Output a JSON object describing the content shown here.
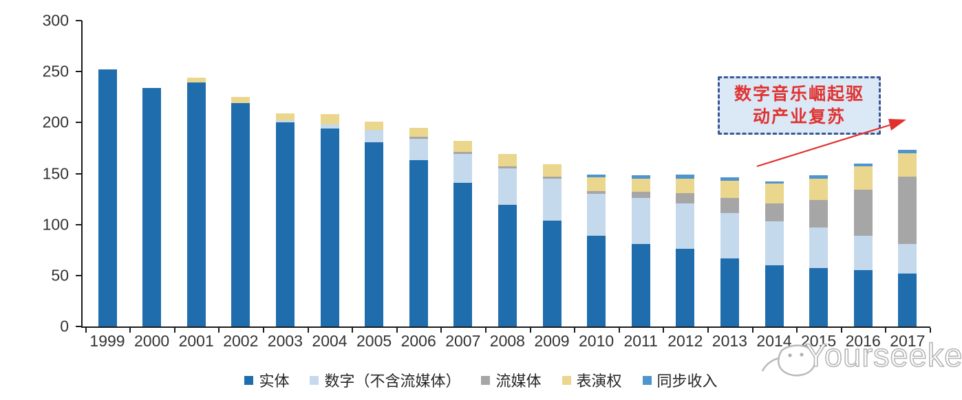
{
  "chart_data": {
    "type": "bar",
    "stacked": true,
    "grid": false,
    "legend_position": "bottom",
    "ylim": [
      0,
      300
    ],
    "y_ticks": [
      0,
      50,
      100,
      150,
      200,
      250,
      300
    ],
    "categories": [
      "1999",
      "2000",
      "2001",
      "2002",
      "2003",
      "2004",
      "2005",
      "2006",
      "2007",
      "2008",
      "2009",
      "2010",
      "2011",
      "2012",
      "2013",
      "2014",
      "2015",
      "2016",
      "2017"
    ],
    "series": [
      {
        "name": "实体",
        "color": "#1f6dad",
        "values": [
          252,
          234,
          239,
          219,
          200,
          194,
          181,
          163,
          141,
          119,
          104,
          89,
          81,
          76,
          67,
          60,
          57,
          55,
          52
        ]
      },
      {
        "name": "数字（不含流媒体）",
        "color": "#c5d9ed",
        "values": [
          0,
          0,
          0,
          0,
          2,
          4,
          12,
          21,
          28,
          36,
          41,
          41,
          45,
          45,
          44,
          43,
          40,
          34,
          29
        ]
      },
      {
        "name": "流媒体",
        "color": "#a6a6a6",
        "values": [
          0,
          0,
          0,
          0,
          0,
          0,
          0,
          2,
          2,
          2,
          2,
          3,
          6,
          10,
          15,
          18,
          27,
          45,
          66
        ]
      },
      {
        "name": "表演权",
        "color": "#ead68c",
        "values": [
          0,
          0,
          5,
          6,
          7,
          10,
          8,
          9,
          11,
          12,
          12,
          13,
          13,
          14,
          17,
          19,
          21,
          23,
          23
        ]
      },
      {
        "name": "同步收入",
        "color": "#4e94ce",
        "values": [
          0,
          0,
          0,
          0,
          0,
          0,
          0,
          0,
          0,
          0,
          0,
          3,
          3,
          4,
          3,
          2,
          3,
          3,
          3
        ]
      }
    ]
  },
  "annotation": {
    "line1": "数字音乐崛起驱",
    "line2": "动产业复苏",
    "text_color": "#e03231",
    "border_color": "#3a5795",
    "fill_color": "#dbe8f5",
    "arrow_color": "#e0312e"
  },
  "watermark": {
    "text": "Yourseeker"
  },
  "axis": {
    "line_color": "#1a1a1a",
    "label_color": "#333333"
  }
}
